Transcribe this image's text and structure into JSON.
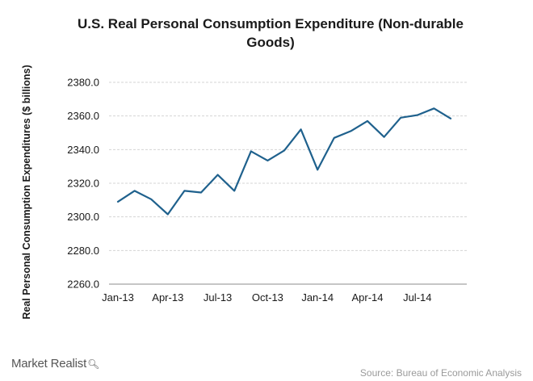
{
  "chart_data": {
    "type": "line",
    "title": "U.S. Real Personal Consumption Expenditure (Non-durable Goods)",
    "ylabel": "Real Personal Consumption Expenditures ($ billions)",
    "xlabel": "",
    "ylim": [
      2260,
      2380
    ],
    "yticks": [
      "2380.0",
      "2360.0",
      "2340.0",
      "2320.0",
      "2300.0",
      "2280.0",
      "2260.0"
    ],
    "ytick_values": [
      2380,
      2360,
      2340,
      2320,
      2300,
      2280,
      2260
    ],
    "x_tick_labels": [
      "Jan-13",
      "Apr-13",
      "Jul-13",
      "Oct-13",
      "Jan-14",
      "Apr-14",
      "Jul-14"
    ],
    "x_tick_months": [
      0,
      3,
      6,
      9,
      12,
      15,
      18
    ],
    "x": [
      "Jan-13",
      "Feb-13",
      "Mar-13",
      "Apr-13",
      "May-13",
      "Jun-13",
      "Jul-13",
      "Aug-13",
      "Sep-13",
      "Oct-13",
      "Nov-13",
      "Dec-13",
      "Jan-14",
      "Feb-14",
      "Mar-14",
      "Apr-14",
      "May-14",
      "Jun-14",
      "Jul-14",
      "Aug-14",
      "Sep-14"
    ],
    "series": [
      {
        "values": [
          2309,
          2315.5,
          2310.5,
          2301.5,
          2315.5,
          2314.5,
          2325,
          2315.5,
          2339,
          2333.5,
          2339.5,
          2352,
          2328,
          2347,
          2351,
          2357,
          2347.5,
          2359,
          2360.5,
          2364.5,
          2358.5
        ]
      }
    ],
    "grid": true,
    "line_color": "#1f618d",
    "grid_color": "#d4d4d4"
  },
  "branding": {
    "logo_text": "Market Realist",
    "logo_icon": "magnifier-icon",
    "source": "Source: Bureau of Economic Analysis"
  }
}
